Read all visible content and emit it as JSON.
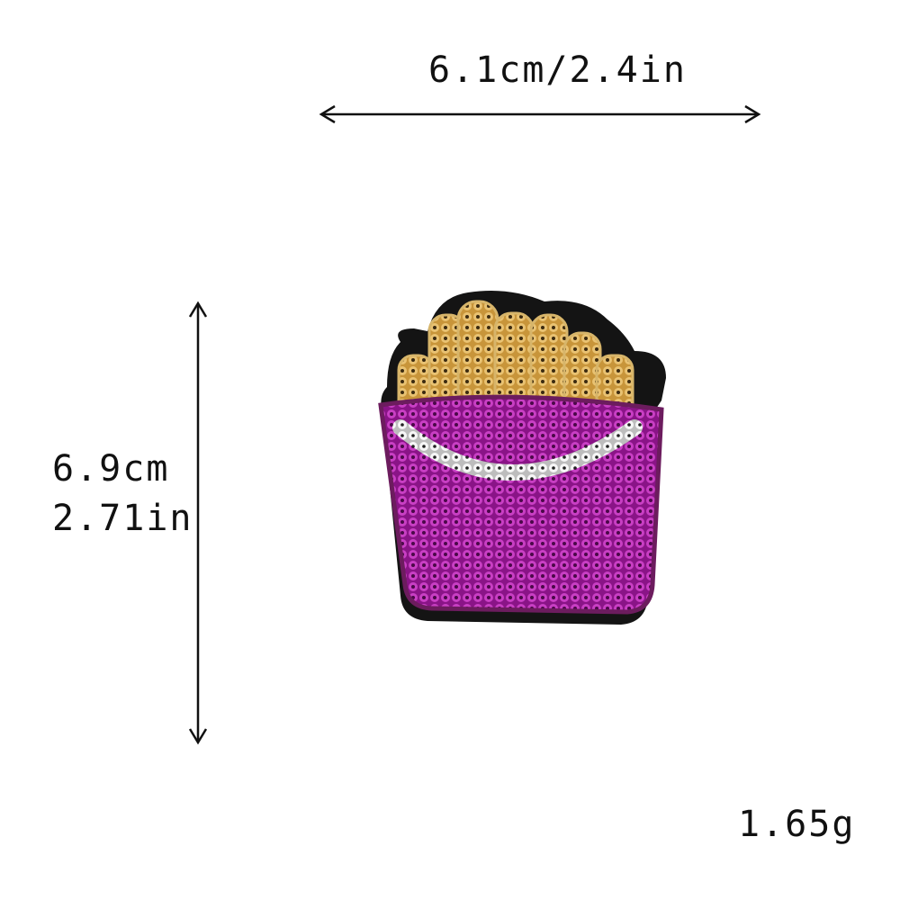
{
  "dimensions": {
    "width": "6.1cm/2.4in",
    "height_cm": "6.9cm",
    "height_in": "2.71in",
    "weight": "1.65g"
  },
  "colors": {
    "fries_gold": "#d9a84b",
    "carton_pink": "#b51fb0",
    "border_black": "#141414",
    "stitch_white": "#f3f3f3"
  },
  "product": {
    "subject": "french-fries-sequin-patch"
  }
}
